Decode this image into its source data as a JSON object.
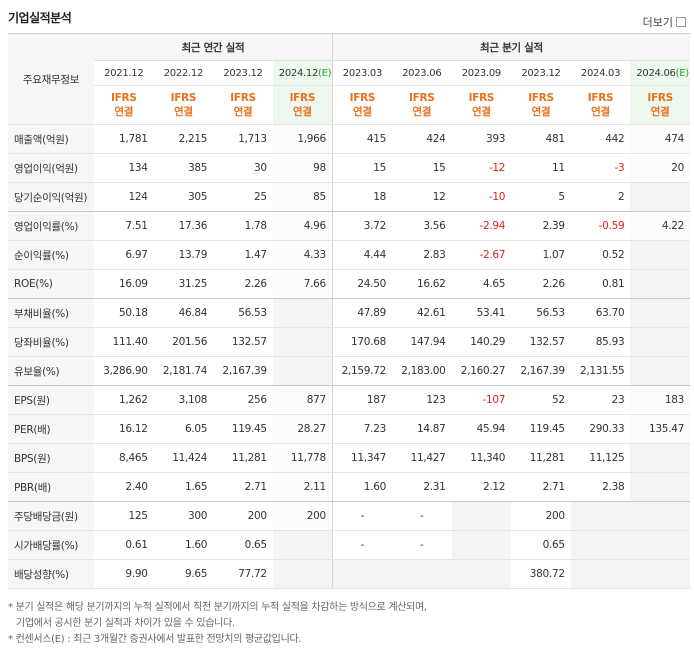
{
  "header": {
    "title": "기업실적분석",
    "more": "더보기"
  },
  "table": {
    "corner": "주요재무정보",
    "groups": [
      {
        "label": "최근 연간 실적",
        "span": 4
      },
      {
        "label": "최근 분기 실적",
        "span": 6
      }
    ],
    "columns": [
      {
        "period": "2021.12",
        "estimate": null
      },
      {
        "period": "2022.12",
        "estimate": null
      },
      {
        "period": "2023.12",
        "estimate": null
      },
      {
        "period": "2024.12",
        "estimate": "(E)"
      },
      {
        "period": "2023.03",
        "estimate": null
      },
      {
        "period": "2023.06",
        "estimate": null
      },
      {
        "period": "2023.09",
        "estimate": null
      },
      {
        "period": "2023.12",
        "estimate": null
      },
      {
        "period": "2024.03",
        "estimate": null
      },
      {
        "period": "2024.06",
        "estimate": "(E)"
      }
    ],
    "basis": [
      "IFRS",
      "연결"
    ],
    "rows": [
      {
        "label": "매출액(억원)",
        "values": [
          "1,781",
          "2,215",
          "1,713",
          "1,966",
          "415",
          "424",
          "393",
          "481",
          "442",
          "474"
        ]
      },
      {
        "label": "영업이익(억원)",
        "values": [
          "134",
          "385",
          "30",
          "98",
          "15",
          "15",
          "-12",
          "11",
          "-3",
          "20"
        ]
      },
      {
        "label": "당기순이익(억원)",
        "values": [
          "124",
          "305",
          "25",
          "85",
          "18",
          "12",
          "-10",
          "5",
          "2",
          null
        ]
      },
      {
        "label": "영업이익률(%)",
        "values": [
          "7.51",
          "17.36",
          "1.78",
          "4.96",
          "3.72",
          "3.56",
          "-2.94",
          "2.39",
          "-0.59",
          "4.22"
        ]
      },
      {
        "label": "순이익률(%)",
        "values": [
          "6.97",
          "13.79",
          "1.47",
          "4.33",
          "4.44",
          "2.83",
          "-2.67",
          "1.07",
          "0.52",
          null
        ]
      },
      {
        "label": "ROE(%)",
        "values": [
          "16.09",
          "31.25",
          "2.26",
          "7.66",
          "24.50",
          "16.62",
          "4.65",
          "2.26",
          "0.81",
          null
        ]
      },
      {
        "label": "부채비율(%)",
        "values": [
          "50.18",
          "46.84",
          "56.53",
          null,
          "47.89",
          "42.61",
          "53.41",
          "56.53",
          "63.70",
          null
        ]
      },
      {
        "label": "당좌비율(%)",
        "values": [
          "111.40",
          "201.56",
          "132.57",
          null,
          "170.68",
          "147.94",
          "140.29",
          "132.57",
          "85.93",
          null
        ]
      },
      {
        "label": "유보율(%)",
        "values": [
          "3,286.90",
          "2,181.74",
          "2,167.39",
          null,
          "2,159.72",
          "2,183.00",
          "2,160.27",
          "2,167.39",
          "2,131.55",
          null
        ]
      },
      {
        "label": "EPS(원)",
        "values": [
          "1,262",
          "3,108",
          "256",
          "877",
          "187",
          "123",
          "-107",
          "52",
          "23",
          "183"
        ]
      },
      {
        "label": "PER(배)",
        "values": [
          "16.12",
          "6.05",
          "119.45",
          "28.27",
          "7.23",
          "14.87",
          "45.94",
          "119.45",
          "290.33",
          "135.47"
        ]
      },
      {
        "label": "BPS(원)",
        "values": [
          "8,465",
          "11,424",
          "11,281",
          "11,778",
          "11,347",
          "11,427",
          "11,340",
          "11,281",
          "11,125",
          null
        ]
      },
      {
        "label": "PBR(배)",
        "values": [
          "2.40",
          "1.65",
          "2.71",
          "2.11",
          "1.60",
          "2.31",
          "2.12",
          "2.71",
          "2.38",
          null
        ]
      },
      {
        "label": "주당배당금(원)",
        "values": [
          "125",
          "300",
          "200",
          "200",
          "-",
          "-",
          null,
          "200",
          null,
          null
        ]
      },
      {
        "label": "시가배당률(%)",
        "values": [
          "0.61",
          "1.60",
          "0.65",
          null,
          "-",
          "-",
          null,
          "0.65",
          null,
          null
        ]
      },
      {
        "label": "배당성향(%)",
        "values": [
          "9.90",
          "9.65",
          "77.72",
          null,
          null,
          null,
          null,
          "380.72",
          null,
          null
        ]
      }
    ]
  },
  "notes": [
    "* 분기 실적은 해당 분기까지의 누적 실적에서 직전 분기까지의 누적 실적을 차감하는 방식으로 계산되며,",
    "기업에서 공시한 분기 실적과 차이가 있을 수 있습니다.",
    "* 컨센서스(E) : 최근 3개월간 증권사에서 발표한 전망치의 평균값입니다."
  ]
}
